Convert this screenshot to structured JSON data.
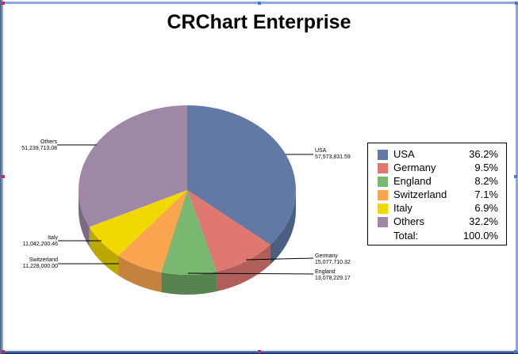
{
  "chart_data": {
    "type": "pie",
    "title": "CRChart Enterprise",
    "style": "3d-pie",
    "series": [
      {
        "name": "USA",
        "value": 57573831.59,
        "value_label": "57,573,831.59",
        "percent": 36.2,
        "percent_label": "36.2%",
        "color": "#6279a6"
      },
      {
        "name": "Germany",
        "value": 15077710.32,
        "value_label": "15,077,710.32",
        "percent": 9.5,
        "percent_label": "9.5%",
        "color": "#e07872"
      },
      {
        "name": "England",
        "value": 13078229.17,
        "value_label": "13,078,229.17",
        "percent": 8.2,
        "percent_label": "8.2%",
        "color": "#7ab872"
      },
      {
        "name": "Switzerland",
        "value": 11228000.0,
        "value_label": "11,228,000.00",
        "percent": 7.1,
        "percent_label": "7.1%",
        "color": "#fca550"
      },
      {
        "name": "Italy",
        "value": 11042200.46,
        "value_label": "11,042,200.46",
        "percent": 6.9,
        "percent_label": "6.9%",
        "color": "#f0d800"
      },
      {
        "name": "Others",
        "value": 51239713.08,
        "value_label": "51,239,713.08",
        "percent": 32.2,
        "percent_label": "32.2%",
        "color": "#9e88a6"
      }
    ],
    "legend": {
      "position": "right",
      "total_label": "Total:",
      "total_percent": "100.0%"
    }
  },
  "labels": {
    "usa_name": "USA",
    "usa_value": "57,573,831.59",
    "germany_name": "Germany",
    "germany_value": "15,077,710.32",
    "england_name": "England",
    "england_value": "13,078,229.17",
    "switzerland_name": "Switzerland",
    "switzerland_value": "11,228,000.00",
    "italy_name": "Italy",
    "italy_value": "11,042,200.46",
    "others_name": "Others",
    "others_value": "51,239,713.08"
  }
}
